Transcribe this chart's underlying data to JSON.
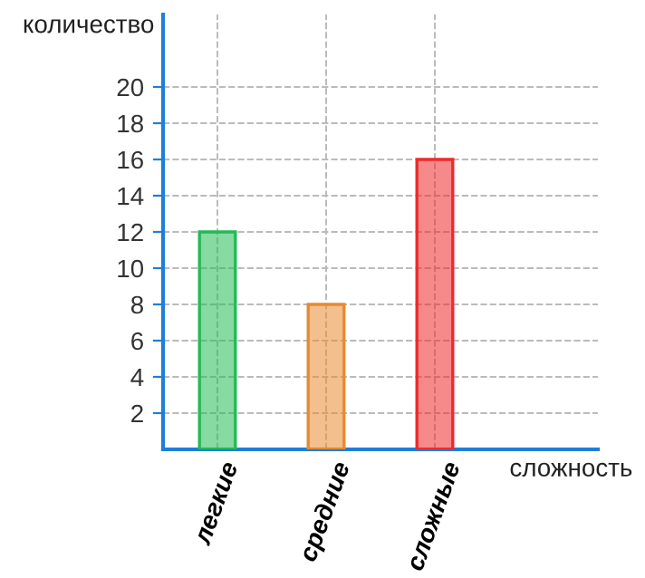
{
  "chart_data": {
    "type": "bar",
    "xlabel": "сложность",
    "ylabel": "количество",
    "categories": [
      "легкие",
      "средние",
      "сложные"
    ],
    "values": [
      12,
      8,
      16
    ],
    "colors": [
      "#22bb55",
      "#e88a30",
      "#ee2a2a"
    ],
    "ylim": [
      0,
      24
    ],
    "yticks": [
      2,
      4,
      6,
      8,
      10,
      12,
      14,
      16,
      18,
      20
    ],
    "grid": true,
    "legend": false
  }
}
